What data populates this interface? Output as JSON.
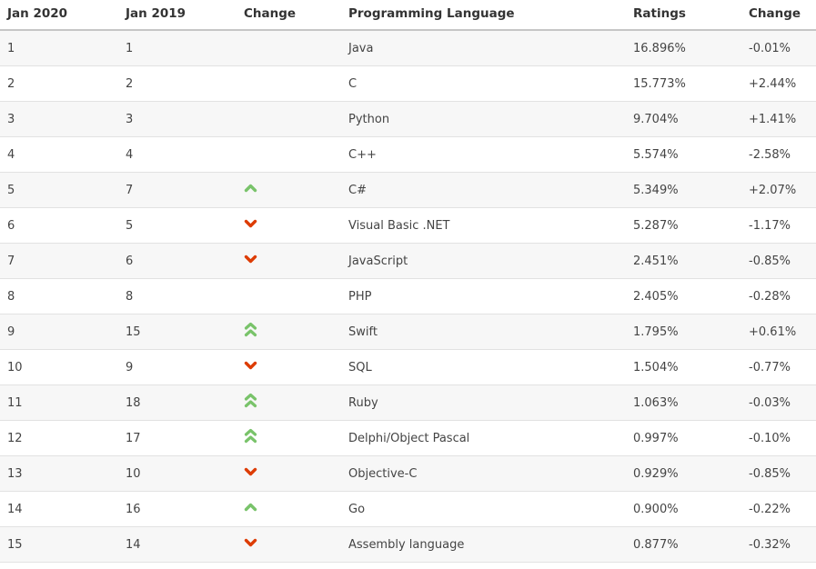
{
  "chart_data": {
    "type": "table",
    "title": "",
    "columns": [
      "Jan 2020",
      "Jan 2019",
      "Change",
      "Programming Language",
      "Ratings",
      "Change"
    ],
    "rows": [
      {
        "rank_2020": "1",
        "rank_2019": "1",
        "direction": "none",
        "language": "Java",
        "ratings": "16.896%",
        "change_pct": "-0.01%"
      },
      {
        "rank_2020": "2",
        "rank_2019": "2",
        "direction": "none",
        "language": "C",
        "ratings": "15.773%",
        "change_pct": "+2.44%"
      },
      {
        "rank_2020": "3",
        "rank_2019": "3",
        "direction": "none",
        "language": "Python",
        "ratings": "9.704%",
        "change_pct": "+1.41%"
      },
      {
        "rank_2020": "4",
        "rank_2019": "4",
        "direction": "none",
        "language": "C++",
        "ratings": "5.574%",
        "change_pct": "-2.58%"
      },
      {
        "rank_2020": "5",
        "rank_2019": "7",
        "direction": "up",
        "language": "C#",
        "ratings": "5.349%",
        "change_pct": "+2.07%"
      },
      {
        "rank_2020": "6",
        "rank_2019": "5",
        "direction": "down",
        "language": "Visual Basic .NET",
        "ratings": "5.287%",
        "change_pct": "-1.17%"
      },
      {
        "rank_2020": "7",
        "rank_2019": "6",
        "direction": "down",
        "language": "JavaScript",
        "ratings": "2.451%",
        "change_pct": "-0.85%"
      },
      {
        "rank_2020": "8",
        "rank_2019": "8",
        "direction": "none",
        "language": "PHP",
        "ratings": "2.405%",
        "change_pct": "-0.28%"
      },
      {
        "rank_2020": "9",
        "rank_2019": "15",
        "direction": "up2",
        "language": "Swift",
        "ratings": "1.795%",
        "change_pct": "+0.61%"
      },
      {
        "rank_2020": "10",
        "rank_2019": "9",
        "direction": "down",
        "language": "SQL",
        "ratings": "1.504%",
        "change_pct": "-0.77%"
      },
      {
        "rank_2020": "11",
        "rank_2019": "18",
        "direction": "up2",
        "language": "Ruby",
        "ratings": "1.063%",
        "change_pct": "-0.03%"
      },
      {
        "rank_2020": "12",
        "rank_2019": "17",
        "direction": "up2",
        "language": "Delphi/Object Pascal",
        "ratings": "0.997%",
        "change_pct": "-0.10%"
      },
      {
        "rank_2020": "13",
        "rank_2019": "10",
        "direction": "down",
        "language": "Objective-C",
        "ratings": "0.929%",
        "change_pct": "-0.85%"
      },
      {
        "rank_2020": "14",
        "rank_2019": "16",
        "direction": "up",
        "language": "Go",
        "ratings": "0.900%",
        "change_pct": "-0.22%"
      },
      {
        "rank_2020": "15",
        "rank_2019": "14",
        "direction": "down",
        "language": "Assembly language",
        "ratings": "0.877%",
        "change_pct": "-0.32%"
      }
    ]
  },
  "icons": {
    "up": "chevron-up-icon",
    "down": "chevron-down-icon",
    "up2": "double-chevron-up-icon"
  },
  "colors": {
    "up_green": "#79c36a",
    "down_red": "#dd3c05",
    "header_text": "#333333",
    "body_text": "#444444",
    "row_alt_bg": "#f7f7f7",
    "row_border": "#e2e2e2",
    "header_border": "#c6c6c6"
  }
}
